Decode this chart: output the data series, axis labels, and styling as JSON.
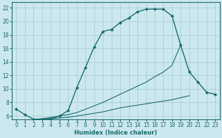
{
  "xlabel": "Humidex (Indice chaleur)",
  "background_color": "#cce8ef",
  "grid_color": "#aacdd6",
  "line_color": "#1a6b6b",
  "xlim": [
    -0.5,
    23.5
  ],
  "ylim": [
    5.5,
    22.8
  ],
  "xticks": [
    0,
    1,
    2,
    3,
    4,
    5,
    6,
    7,
    8,
    9,
    10,
    11,
    12,
    13,
    14,
    15,
    16,
    17,
    18,
    19,
    20,
    21,
    22,
    23
  ],
  "yticks": [
    6,
    8,
    10,
    12,
    14,
    16,
    18,
    20,
    22
  ],
  "main_curve": {
    "x": [
      0,
      1,
      2,
      3,
      4,
      5,
      6,
      7,
      8,
      9,
      10,
      11,
      12,
      13,
      14,
      15,
      16,
      17,
      18,
      19,
      20,
      21,
      22,
      23
    ],
    "y": [
      7.0,
      6.2,
      5.5,
      5.5,
      5.6,
      6.0,
      6.8,
      10.2,
      13.2,
      16.2,
      18.5,
      18.8,
      19.8,
      20.5,
      21.4,
      21.8,
      21.8,
      21.8,
      20.8,
      16.5,
      12.5,
      11.0,
      9.5,
      9.2
    ]
  },
  "upper_lower_curve": {
    "x": [
      2,
      3,
      4,
      5,
      6,
      7,
      8,
      9,
      10,
      11,
      12,
      13,
      14,
      15,
      16,
      17,
      18,
      19
    ],
    "y": [
      5.5,
      5.6,
      5.8,
      6.0,
      6.2,
      6.5,
      7.0,
      7.5,
      8.0,
      8.6,
      9.2,
      9.8,
      10.4,
      11.0,
      11.8,
      12.5,
      13.5,
      16.5
    ]
  },
  "lower_flat_curve": {
    "x": [
      2,
      3,
      4,
      5,
      6,
      7,
      8,
      9,
      10,
      11,
      12,
      13,
      14,
      15,
      16,
      17,
      18,
      19,
      20,
      21,
      22,
      23
    ],
    "y": [
      5.5,
      5.5,
      5.6,
      5.7,
      5.8,
      6.0,
      6.2,
      6.4,
      6.6,
      6.9,
      7.2,
      7.4,
      7.6,
      7.8,
      8.0,
      8.2,
      8.4,
      8.7,
      9.0,
      null,
      null,
      null
    ]
  }
}
